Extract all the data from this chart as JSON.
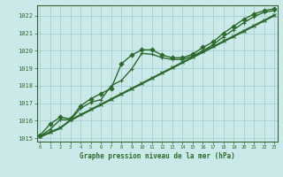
{
  "xlabel": "Graphe pression niveau de la mer (hPa)",
  "background_color": "#cce9e9",
  "grid_color": "#aad4d4",
  "line_color": "#2d6a2d",
  "marker_color": "#2d6a2d",
  "ylim": [
    1014.8,
    1022.6
  ],
  "xlim": [
    -0.3,
    23.3
  ],
  "yticks": [
    1015,
    1016,
    1017,
    1018,
    1019,
    1020,
    1021,
    1022
  ],
  "xticks": [
    0,
    1,
    2,
    3,
    4,
    5,
    6,
    7,
    8,
    9,
    10,
    11,
    12,
    13,
    14,
    15,
    16,
    17,
    18,
    19,
    20,
    21,
    22,
    23
  ],
  "series": [
    [
      1015.15,
      1015.8,
      1016.2,
      1016.1,
      1016.85,
      1017.25,
      1017.55,
      1017.85,
      1019.25,
      1019.75,
      1020.05,
      1020.05,
      1019.75,
      1019.6,
      1019.6,
      1019.8,
      1020.2,
      1020.5,
      1021.0,
      1021.4,
      1021.8,
      1022.1,
      1022.3,
      1022.4
    ],
    [
      1015.1,
      1015.5,
      1016.05,
      1016.05,
      1016.7,
      1017.05,
      1017.2,
      1018.0,
      1018.3,
      1018.95,
      1019.85,
      1019.8,
      1019.6,
      1019.5,
      1019.5,
      1019.7,
      1020.0,
      1020.35,
      1020.8,
      1021.2,
      1021.6,
      1021.95,
      1022.2,
      1022.3
    ],
    [
      1015.1,
      1015.35,
      1015.6,
      1016.05,
      1016.35,
      1016.65,
      1016.95,
      1017.25,
      1017.55,
      1017.85,
      1018.15,
      1018.45,
      1018.75,
      1019.05,
      1019.35,
      1019.65,
      1019.95,
      1020.25,
      1020.55,
      1020.85,
      1021.15,
      1021.45,
      1021.75,
      1022.05
    ],
    [
      1015.05,
      1015.3,
      1015.55,
      1016.0,
      1016.3,
      1016.6,
      1016.9,
      1017.2,
      1017.5,
      1017.8,
      1018.1,
      1018.4,
      1018.7,
      1019.0,
      1019.3,
      1019.6,
      1019.9,
      1020.2,
      1020.5,
      1020.8,
      1021.1,
      1021.4,
      1021.7,
      1022.0
    ]
  ],
  "markers": [
    "D",
    "+",
    "x",
    null
  ],
  "markersizes": [
    2.5,
    3.5,
    3.0,
    0
  ],
  "linewidths": [
    1.0,
    1.0,
    1.0,
    1.0
  ]
}
